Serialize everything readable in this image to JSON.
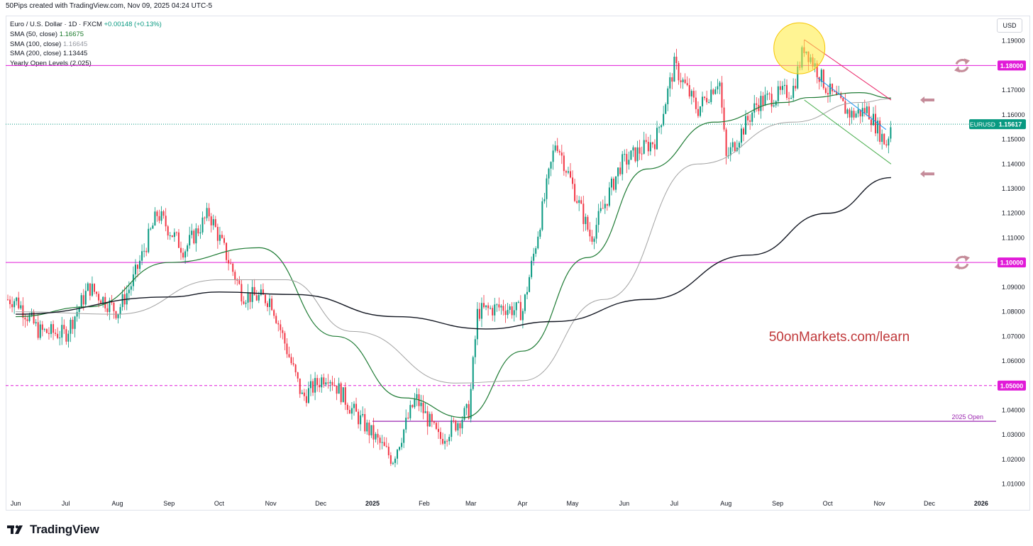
{
  "header": {
    "credit": "50Pips created with TradingView.com, Nov 09, 2025 04:24 UTC-5"
  },
  "legend": {
    "symbol": "Euro / U.S. Dollar · 1D · FXCM",
    "change": "+0.00148 (+0.13%)",
    "sma50_label": "SMA (50, close)",
    "sma50_value": "1.16675",
    "sma100_label": "SMA (100, close)",
    "sma100_value": "1.16645",
    "sma200_label": "SMA (200, close)",
    "sma200_value": "1.13445",
    "yearly_label": "Yearly Open Levels (2,025)"
  },
  "currency_button": "USD",
  "watermark": "50onMarkets.com/learn",
  "footer": {
    "brand": "TradingView"
  },
  "colors": {
    "up": "#089981",
    "down": "#f23645",
    "sma50": "#1e7b34",
    "sma100": "#a3a3a3",
    "sma200": "#131722",
    "level": "#e11ad8",
    "open2025": "#9c27b0",
    "watermark": "#c0393b",
    "highlight": "#ffeb3b",
    "arrow": "#c58c9a"
  },
  "chart_data": {
    "type": "candlestick",
    "symbol": "EURUSD",
    "timeframe": "1D",
    "ylim": [
      1.005,
      1.2
    ],
    "y_ticks": [
      "1.19000",
      "1.18000",
      "1.17000",
      "1.16000",
      "1.15000",
      "1.14000",
      "1.13000",
      "1.12000",
      "1.11000",
      "1.10000",
      "1.09000",
      "1.08000",
      "1.07000",
      "1.06000",
      "1.05000",
      "1.04000",
      "1.03000",
      "1.02000",
      "1.01000"
    ],
    "x_ticks": [
      "Jun",
      "Jul",
      "Aug",
      "Sep",
      "Oct",
      "Nov",
      "Dec",
      "2025",
      "Feb",
      "Mar",
      "Apr",
      "May",
      "Jun",
      "Jul",
      "Aug",
      "Sep",
      "Oct",
      "Nov",
      "Dec",
      "2026"
    ],
    "last_price_label": "EURUSD",
    "last_price": "1.15617",
    "price_path": [
      [
        "2024-06-01",
        1.085
      ],
      [
        "2024-06-15",
        1.072
      ],
      [
        "2024-07-01",
        1.071
      ],
      [
        "2024-07-15",
        1.09
      ],
      [
        "2024-08-01",
        1.08
      ],
      [
        "2024-08-10",
        1.092
      ],
      [
        "2024-08-25",
        1.12
      ],
      [
        "2024-09-10",
        1.105
      ],
      [
        "2024-09-25",
        1.12
      ],
      [
        "2024-10-15",
        1.087
      ],
      [
        "2024-11-01",
        1.085
      ],
      [
        "2024-11-20",
        1.045
      ],
      [
        "2024-12-05",
        1.055
      ],
      [
        "2024-12-20",
        1.04
      ],
      [
        "2025-01-13",
        1.02
      ],
      [
        "2025-01-27",
        1.045
      ],
      [
        "2025-02-10",
        1.028
      ],
      [
        "2025-02-28",
        1.04
      ],
      [
        "2025-03-05",
        1.08
      ],
      [
        "2025-03-20",
        1.082
      ],
      [
        "2025-04-01",
        1.08
      ],
      [
        "2025-04-21",
        1.15
      ],
      [
        "2025-05-12",
        1.11
      ],
      [
        "2025-05-30",
        1.14
      ],
      [
        "2025-06-20",
        1.15
      ],
      [
        "2025-07-01",
        1.18
      ],
      [
        "2025-07-15",
        1.162
      ],
      [
        "2025-07-28",
        1.175
      ],
      [
        "2025-08-01",
        1.142
      ],
      [
        "2025-08-20",
        1.165
      ],
      [
        "2025-09-10",
        1.17
      ],
      [
        "2025-09-17",
        1.188
      ],
      [
        "2025-10-01",
        1.17
      ],
      [
        "2025-10-15",
        1.16
      ],
      [
        "2025-10-25",
        1.162
      ],
      [
        "2025-11-05",
        1.148
      ],
      [
        "2025-11-08",
        1.1562
      ]
    ],
    "series": [
      {
        "name": "SMA (50, close)",
        "values": [
          [
            "2024-06-01",
            1.078
          ],
          [
            "2024-07-15",
            1.082
          ],
          [
            "2024-09-01",
            1.1
          ],
          [
            "2024-10-25",
            1.106
          ],
          [
            "2024-12-10",
            1.07
          ],
          [
            "2025-01-20",
            1.045
          ],
          [
            "2025-02-25",
            1.037
          ],
          [
            "2025-04-01",
            1.064
          ],
          [
            "2025-05-10",
            1.102
          ],
          [
            "2025-06-15",
            1.138
          ],
          [
            "2025-07-25",
            1.157
          ],
          [
            "2025-09-05",
            1.165
          ],
          [
            "2025-09-20",
            1.167
          ],
          [
            "2025-10-20",
            1.169
          ],
          [
            "2025-11-08",
            1.1668
          ]
        ]
      },
      {
        "name": "SMA (100, close)",
        "values": [
          [
            "2024-06-01",
            1.08
          ],
          [
            "2024-08-01",
            1.079
          ],
          [
            "2024-10-01",
            1.093
          ],
          [
            "2024-11-10",
            1.093
          ],
          [
            "2024-12-20",
            1.072
          ],
          [
            "2025-02-20",
            1.051
          ],
          [
            "2025-04-01",
            1.052
          ],
          [
            "2025-05-20",
            1.085
          ],
          [
            "2025-07-15",
            1.14
          ],
          [
            "2025-09-10",
            1.157
          ],
          [
            "2025-10-20",
            1.165
          ],
          [
            "2025-11-08",
            1.1665
          ]
        ]
      },
      {
        "name": "SMA (200, close)",
        "values": [
          [
            "2024-06-01",
            1.079
          ],
          [
            "2024-09-01",
            1.086
          ],
          [
            "2024-10-01",
            1.088
          ],
          [
            "2024-11-15",
            1.087
          ],
          [
            "2025-01-15",
            1.078
          ],
          [
            "2025-03-10",
            1.073
          ],
          [
            "2025-04-20",
            1.076
          ],
          [
            "2025-06-15",
            1.085
          ],
          [
            "2025-08-15",
            1.103
          ],
          [
            "2025-10-01",
            1.12
          ],
          [
            "2025-11-08",
            1.1345
          ]
        ]
      }
    ],
    "levels": [
      {
        "price": 1.18,
        "label": "1.18000",
        "style": "solid"
      },
      {
        "price": 1.1,
        "label": "1.10000",
        "style": "solid"
      },
      {
        "price": 1.05,
        "label": "1.05000",
        "style": "dashed"
      }
    ],
    "open_2025": {
      "price": 1.0355,
      "label": "2025 Open",
      "from": "2025-01-01"
    },
    "trendlines": [
      {
        "color": "#e91e63",
        "from": [
          "2025-09-17",
          1.1905
        ],
        "to": [
          "2025-11-08",
          1.166
        ]
      },
      {
        "color": "#4caf50",
        "from": [
          "2025-09-17",
          1.166
        ],
        "to": [
          "2025-11-08",
          1.14
        ]
      },
      {
        "color": "#2196f3",
        "from": [
          "2025-09-25",
          1.175
        ],
        "to": [
          "2025-11-05",
          1.154
        ]
      }
    ],
    "grid": false,
    "legend_position": "top-left"
  }
}
